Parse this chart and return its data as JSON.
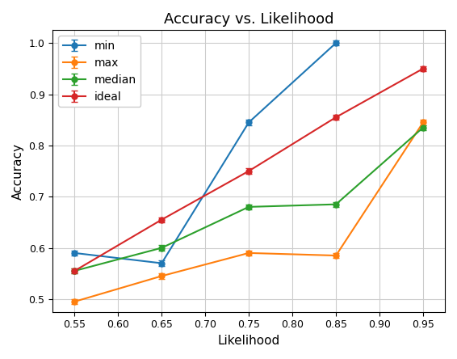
{
  "title": "Accuracy vs. Likelihood",
  "xlabel": "Likelihood",
  "ylabel": "Accuracy",
  "x": [
    0.55,
    0.65,
    0.75,
    0.85,
    0.95
  ],
  "min": {
    "y": [
      0.59,
      0.57,
      0.845,
      1.0,
      null
    ],
    "yerr": [
      0.005,
      0.005,
      0.005,
      0.005,
      null
    ],
    "color": "#1f77b4",
    "label": "min"
  },
  "max": {
    "y": [
      0.495,
      0.545,
      0.59,
      0.585,
      0.845
    ],
    "yerr": [
      0.005,
      0.005,
      0.005,
      0.005,
      0.005
    ],
    "color": "#ff7f0e",
    "label": "max"
  },
  "median": {
    "y": [
      0.555,
      0.6,
      0.68,
      0.685,
      0.835
    ],
    "yerr": [
      0.005,
      0.005,
      0.005,
      0.005,
      0.005
    ],
    "color": "#2ca02c",
    "label": "median"
  },
  "ideal": {
    "y": [
      0.555,
      0.655,
      0.75,
      0.855,
      0.95
    ],
    "yerr": [
      0.005,
      0.005,
      0.005,
      0.005,
      0.005
    ],
    "color": "#d62728",
    "label": "ideal"
  },
  "xlim": [
    0.525,
    0.975
  ],
  "ylim": [
    0.475,
    1.025
  ],
  "xticks": [
    0.55,
    0.6,
    0.65,
    0.7,
    0.75,
    0.8,
    0.85,
    0.9,
    0.95
  ],
  "yticks": [
    0.5,
    0.6,
    0.7,
    0.8,
    0.9,
    1.0
  ],
  "facecolor": "#ffffff",
  "grid_color": "#cccccc",
  "title_fontsize": 13,
  "label_fontsize": 11,
  "tick_fontsize": 9,
  "legend_fontsize": 10
}
